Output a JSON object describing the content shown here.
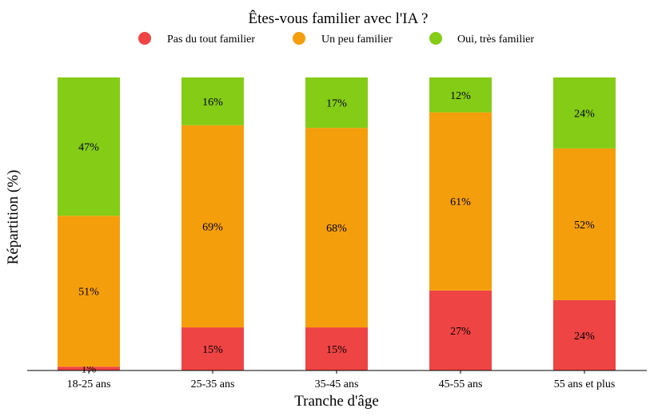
{
  "chart_data": {
    "type": "bar",
    "stacked": true,
    "title": "Êtes-vous familier avec l'IA ?",
    "xlabel": "Tranche d'âge",
    "ylabel": "Répartition (%)",
    "ylim": [
      0,
      100
    ],
    "grid": false,
    "legend_position": "top-center",
    "categories": [
      "18-25 ans",
      "25-35 ans",
      "35-45 ans",
      "45-55 ans",
      "55 ans et plus"
    ],
    "series": [
      {
        "name": "Pas du tout familier",
        "color": "#ef4444",
        "values": [
          1.3,
          14.7,
          14.7,
          27.3,
          24.0
        ],
        "labels": [
          "1%",
          "15%",
          "15%",
          "27%",
          "24%"
        ]
      },
      {
        "name": "Un peu familier",
        "color": "#f59e0b",
        "values": [
          51.5,
          69.0,
          68.1,
          60.8,
          51.8
        ],
        "labels": [
          "51%",
          "69%",
          "68%",
          "61%",
          "52%"
        ]
      },
      {
        "name": "Oui, très familier",
        "color": "#84cc16",
        "values": [
          47.2,
          16.3,
          17.2,
          11.9,
          24.2
        ],
        "labels": [
          "47%",
          "16%",
          "17%",
          "12%",
          "24%"
        ]
      }
    ]
  }
}
